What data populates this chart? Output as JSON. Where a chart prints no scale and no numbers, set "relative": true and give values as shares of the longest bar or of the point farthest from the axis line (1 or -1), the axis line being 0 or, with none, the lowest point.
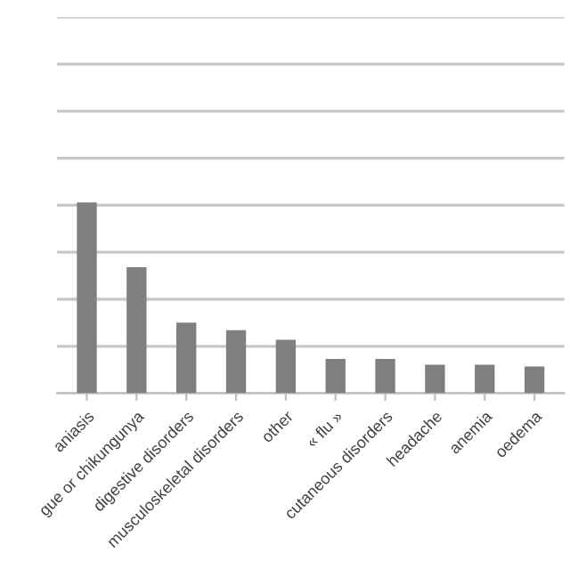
{
  "chart_data": {
    "type": "bar",
    "relative": true,
    "categories": [
      "aniasis",
      "gue or chikungunya",
      "digestive disorders",
      "musculoskeletal disorders",
      "other",
      "« flu »",
      "cutaneous disorders",
      "headache",
      "anemia",
      "oedema"
    ],
    "values": [
      1,
      0.66,
      0.37,
      0.33,
      0.28,
      0.18,
      0.18,
      0.15,
      0.15,
      0.14
    ],
    "color": "#7f7f7f",
    "grid": "y"
  }
}
